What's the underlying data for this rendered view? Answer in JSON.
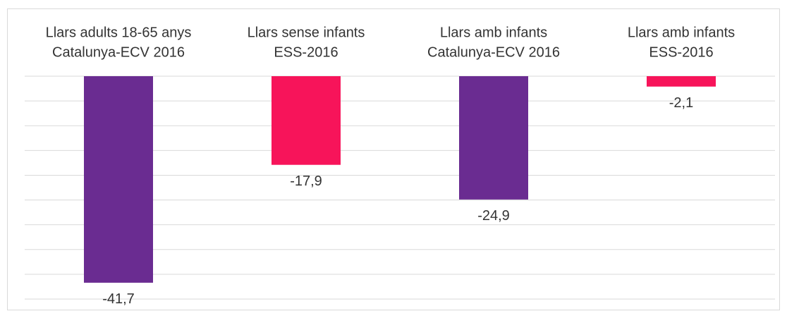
{
  "chart_data": {
    "type": "bar",
    "categories": [
      [
        "Llars adults 18-65 anys",
        "Catalunya-ECV 2016"
      ],
      [
        "Llars sense infants",
        "ESS-2016"
      ],
      [
        "Llars amb infants",
        "Catalunya-ECV 2016"
      ],
      [
        "Llars amb infants",
        "ESS-2016"
      ]
    ],
    "values": [
      -41.7,
      -17.9,
      -24.9,
      -2.1
    ],
    "value_labels": [
      "-41,7",
      "-17,9",
      "-24,9",
      "-2,1"
    ],
    "colors": [
      "#6a2c91",
      "#f7145a",
      "#6a2c91",
      "#f7145a"
    ],
    "ylim": [
      -45,
      0
    ],
    "yticks": [
      -45,
      -40,
      -35,
      -30,
      -25,
      -20,
      -15,
      -10,
      -5,
      0
    ],
    "grid": true
  }
}
